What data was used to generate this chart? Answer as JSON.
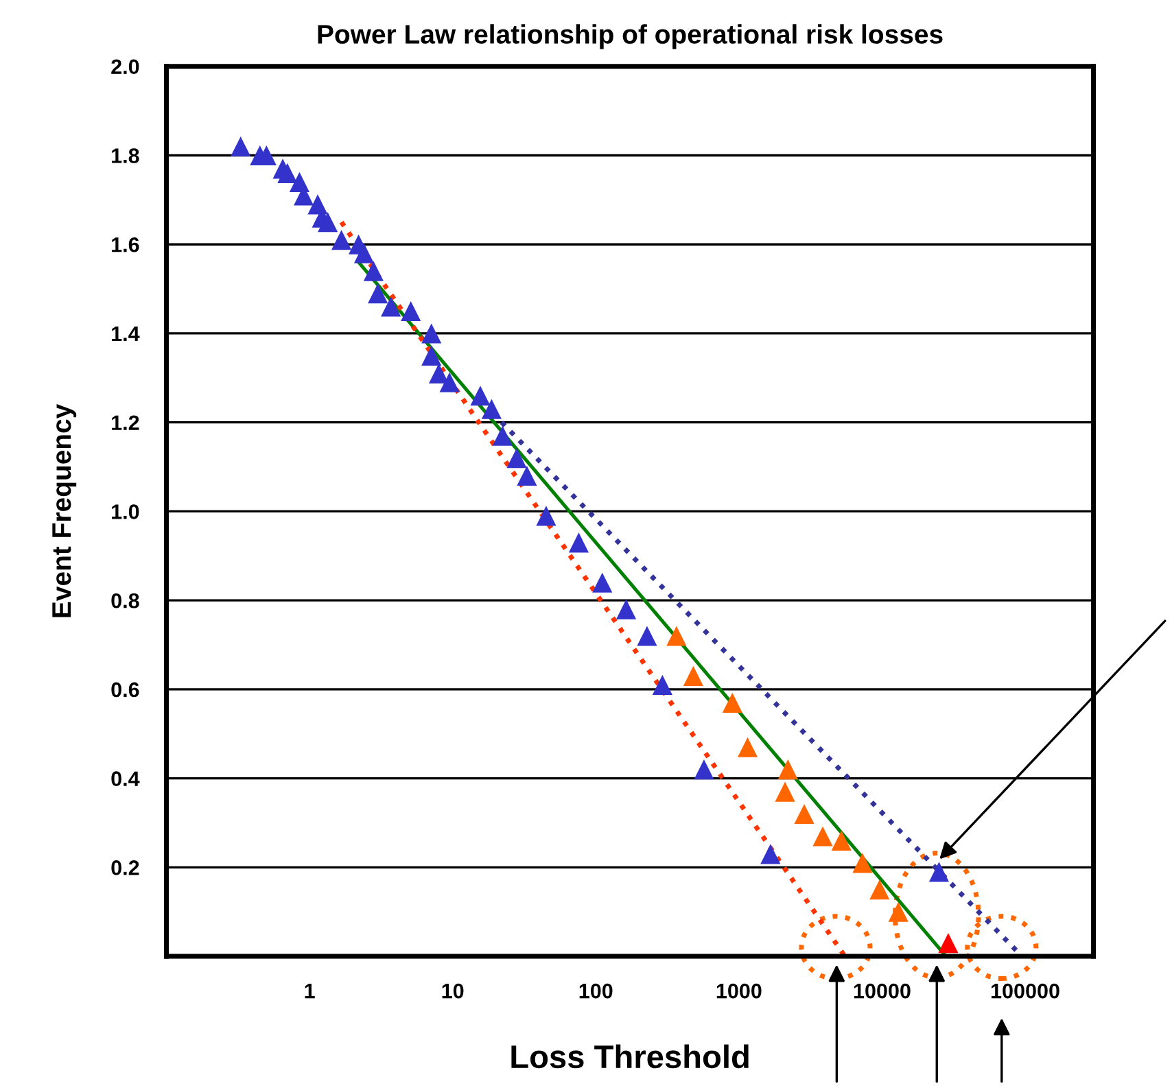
{
  "chart_data": {
    "type": "scatter",
    "title": "Power Law relationship of operational risk losses",
    "xlabel": "Loss Threshold",
    "ylabel": "Event Frequency",
    "log": "x",
    "xlim": [
      0.1,
      300000
    ],
    "xticks": [
      1,
      10,
      100,
      1000,
      10000,
      100000
    ],
    "ylim": [
      0,
      2.0
    ],
    "yticks": [
      {
        "value": 0.2,
        "label": "0.2"
      },
      {
        "value": 0.4,
        "label": "0.4"
      },
      {
        "value": 0.6,
        "label": "0.6"
      },
      {
        "value": 0.8,
        "label": "0.8"
      },
      {
        "value": 1.0,
        "label": "1.0"
      },
      {
        "value": 1.2,
        "label": "1.2"
      },
      {
        "value": 1.4,
        "label": "1.4"
      },
      {
        "value": 1.6,
        "label": "1.6"
      },
      {
        "value": 1.8,
        "label": "1.8"
      },
      {
        "value": 2.0,
        "label": "2.0"
      }
    ],
    "grid": "y",
    "legend": false,
    "series": [
      {
        "marker": "triangle",
        "color": "#3333cc",
        "x": [
          0.33,
          0.45,
          0.5,
          0.65,
          0.7,
          0.85,
          0.91,
          1.14,
          1.22,
          1.34,
          1.67,
          2.2,
          2.4,
          2.8,
          3.0,
          3.7,
          5.1,
          7.1,
          7.1,
          8.0,
          9.5,
          15.6,
          18.7,
          22.3,
          28,
          33,
          45,
          76,
          111,
          163,
          228,
          292,
          570,
          1660,
          25000
        ],
        "values": [
          1.82,
          1.8,
          1.8,
          1.77,
          1.76,
          1.74,
          1.71,
          1.69,
          1.66,
          1.65,
          1.61,
          1.6,
          1.58,
          1.54,
          1.49,
          1.46,
          1.45,
          1.4,
          1.35,
          1.31,
          1.29,
          1.26,
          1.23,
          1.17,
          1.12,
          1.08,
          0.99,
          0.93,
          0.84,
          0.78,
          0.72,
          0.61,
          0.42,
          0.23,
          0.19
        ]
      },
      {
        "marker": "triangle",
        "color": "#ff6600",
        "x": [
          366,
          480,
          900,
          1150,
          2100,
          2200,
          2860,
          3850,
          5200,
          7300,
          9600,
          13000
        ],
        "values": [
          0.72,
          0.63,
          0.57,
          0.47,
          0.37,
          0.42,
          0.32,
          0.27,
          0.26,
          0.21,
          0.15,
          0.1
        ]
      },
      {
        "marker": "triangle",
        "color": "#ff0000",
        "x": [
          29000
        ],
        "values": [
          0.03
        ]
      },
      {
        "type": "line",
        "marker": "none",
        "color": "#008000",
        "line_style": "solid",
        "x": [
          2.2,
          28000
        ],
        "values": [
          1.56,
          0.0
        ]
      },
      {
        "type": "line",
        "marker": "none",
        "color": "#ff3300",
        "line_style": "dotted",
        "x": [
          1.67,
          5500
        ],
        "values": [
          1.65,
          0.0
        ]
      },
      {
        "type": "line",
        "marker": "none",
        "color": "#333399",
        "line_style": "dotted",
        "x": [
          22,
          95000
        ],
        "values": [
          1.2,
          0.0
        ]
      }
    ]
  }
}
